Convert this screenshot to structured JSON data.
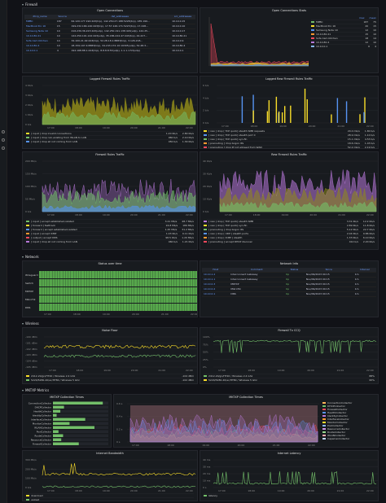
{
  "sections": {
    "firewall": "Firewall",
    "network": "Network",
    "wireless": "Wireless",
    "mktxp": "MKTXP Metrics"
  },
  "panels": {
    "open_connections": "Open Connections",
    "open_connections_stats": "Open Connections Stats",
    "logged_firewall_rules": "Logged Firewall Rules Traffic",
    "logged_raw_firewall_rules": "Logged Raw Firewall Rules Traffic",
    "firewall_rules_traffic": "Firewall Rules Traffic",
    "raw_firewall_rules_traffic": "Raw Firewall Rules Traffic",
    "status_over_time": "Status over time",
    "network_info": "Network Info",
    "noise_floor": "Noise Floor",
    "firewall_tx_ccq": "Firewall Tx CCQ",
    "mktxp_collection_times": "MKTXP Collection Times",
    "mktxp_collection_times_2": "MKTXP Collection Times",
    "internet_bandwidth": "Internet Bandwidth",
    "internet_latency": "Internet Latency"
  },
  "open_connections": {
    "headers": [
      "dhcp_name",
      "Source",
      "dst_addresses",
      "src_addresses"
    ],
    "rows": [
      [
        "MPBC",
        "187",
        "64.120.177.190:443(tcp), 142.250.27.188:5228(tcp), 185.199...",
        "10.10.0.15"
      ],
      [
        "MacBook Pro 16",
        "15",
        "199.232.166.140:443(tcp), 17.57.146.171:5223(tcp), 17.248...",
        "10.10.0.10"
      ],
      [
        "Samsung Note 10",
        "10",
        "216.239.36.223:443(udp), 142.250.191.138:443(udp), 142.25...",
        "10.10.0.17"
      ],
      [
        "10.10.80.21",
        "10",
        "142.250.191.142:443(udp), 35.186.224.47:443(tcp), 44.227...",
        "10.10.80.21"
      ],
      [
        "Sofa Cam Kitchen",
        "14",
        "34.100.21.92:443(tcp), 52.28.18.1:8883(tcp), 3.126.218...",
        "10.10.0.9"
      ],
      [
        "10.10.80.4",
        "10",
        "18.159.197.4:8883(tcp), 34.243.172.10:19305(udp), 52.48.3...",
        "10.10.80.4"
      ],
      [
        "10.10.0.1",
        "4",
        "192.168.88.1:443(tcp), 8.8.8.8:53(udp), 1.1.1.1:53(udp)",
        "10.10.0.1"
      ]
    ]
  },
  "open_connections_stats": {
    "legend_headers": [
      "max",
      "mean"
    ],
    "legend": [
      {
        "name": "MPBC",
        "max": "187",
        "mean": "75"
      },
      {
        "name": "MacBook Pro 16",
        "max": "20",
        "mean": "15"
      },
      {
        "name": "Samsung Note 10",
        "max": "12",
        "mean": "10"
      },
      {
        "name": "10.10.80.21",
        "max": "15",
        "mean": "10"
      },
      {
        "name": "Sofa Cam Kitchen",
        "max": "18",
        "mean": "14"
      },
      {
        "name": "10.10.80.4",
        "max": "12",
        "mean": "10"
      },
      {
        "name": "10.10.0.1",
        "max": "6",
        "mean": "4"
      }
    ]
  },
  "logged_fw": {
    "yticks": [
      "4 Kb/s",
      "3 Kb/s",
      "2 Kb/s",
      "1 Kb/s",
      "0 b/s"
    ],
    "xticks": [
      "17:00",
      "18:00",
      "19:00",
      "20:00",
      "21:00",
      "22:00"
    ],
    "legend_headers": [
      "Mean",
      "Max"
    ],
    "legend": [
      {
        "name": "[ input ] drop invalid connections",
        "mean": "1.20 Kb/s",
        "max": "2.80 Kb/s"
      },
      {
        "name": "[ input ] drop non-existing from WLAN to LAN",
        "mean": "960 b/s",
        "max": "2.10 Kb/s"
      },
      {
        "name": "[ input ] drop all not coming from LAN",
        "mean": "450 b/s",
        "max": "1.30 Kb/s"
      }
    ]
  },
  "logged_raw": {
    "yticks": [
      "6 b/s",
      "4 b/s",
      "2 b/s",
      "0 b/s"
    ],
    "xticks": [
      "17:00",
      "18:00",
      "19:00",
      "20:00",
      "21:00",
      "22:00"
    ],
    "legend_headers": [
      "Mean",
      "Max"
    ],
    "legend": [
      {
        "name": "[ raw ] drop [ TCP quick] stealth SMB requests",
        "mean": "20.0 mb/s",
        "max": "1.80 b/s"
      },
      {
        "name": "[ raw ] drop [ TCP quick] stealth port 0",
        "mean": "28.9 mb/s",
        "max": "1.10 b/s"
      },
      {
        "name": "[ raw ] drop [ TCP quick] syn-fin",
        "mean": "15.1 mb/s",
        "max": "4.53 b/s"
      },
      {
        "name": "[ prerouting ] drop bogon IPs",
        "mean": "18.6 mb/s",
        "max": "1.43 b/s"
      },
      {
        "name": "[ prerouting ] drop IP not allowed from WAN",
        "mean": "52.2 mb/s",
        "max": "2.19 b/s"
      }
    ]
  },
  "fw_traffic": {
    "yticks": [
      "200 Mb/s",
      "150 Mb/s",
      "100 Mb/s",
      "50 Mb/s",
      "0 b/s"
    ],
    "xticks": [
      "17:00",
      "18:00",
      "19:00",
      "20:00",
      "21:00",
      "22:00"
    ],
    "legend": [
      {
        "name": "[ input ] accept established,related",
        "mean": "3.21 Mb/s",
        "max": "48.7 Mb/s"
      },
      {
        "name": "[ forward ] fasttrack",
        "mean": "16.8 Mb/s",
        "max": "189 Mb/s"
      },
      {
        "name": "[ forward ] accept established,related",
        "mean": "1.45 Mb/s",
        "max": "31.2 Mb/s"
      },
      {
        "name": "[ input ] accept ICMP",
        "mean": "1.03 Kb/s",
        "max": "9.11 Kb/s"
      },
      {
        "name": "[ output ] accept DNS",
        "mean": "98.5 Kb/s",
        "max": "1.20 Mb/s"
      },
      {
        "name": "[ input ] drop all not coming from LAN",
        "mean": "460 b/s",
        "max": "1.21 Kb/s"
      }
    ]
  },
  "raw_traffic": {
    "yticks": [
      "40 Kb/s",
      "30 Kb/s",
      "20 Kb/s",
      "10 Kb/s",
      "0 b/s"
    ],
    "xticks": [
      "17:00",
      "18:00",
      "19:00",
      "20:00",
      "21:00",
      "22:00"
    ],
    "legend": [
      {
        "name": "[ raw ] drop [ TCP quick] stealth SMB",
        "mean": "3.31 Kb/s",
        "max": "12.2 Kb/s"
      },
      {
        "name": "[ raw ] drop [ TCP quick] syn-fin",
        "mean": "2.89 Kb/s",
        "max": "11.8 Kb/s"
      },
      {
        "name": "[ prerouting ] drop bogon IPs",
        "mean": "5.12 Kb/s",
        "max": "22.7 Kb/s"
      },
      {
        "name": "[ raw ] drop [ UDP ] stealth ports",
        "mean": "2.04 Kb/s",
        "max": "9.86 Kb/s"
      },
      {
        "name": "[ raw ] drop [ ICMP ] stealth",
        "mean": "1.33 Kb/s",
        "max": "6.10 Kb/s"
      },
      {
        "name": "[ prerouting ] accept DHCP discover",
        "mean": "412 b/s",
        "max": "2.20 Kb/s"
      }
    ]
  },
  "status_over_time": {
    "rows": [
      "Wireguard",
      "Switch",
      "MKTXP",
      "MikroTik",
      "DNS"
    ],
    "xticks": [
      "17:00",
      "18:00",
      "19:00",
      "20:00",
      "21:00",
      "22:00"
    ]
  },
  "network_info": {
    "headers": [
      "Host",
      "Comment",
      "Status",
      "Since",
      "Interval"
    ],
    "rows": [
      [
        "10.10.1.2",
        "Interconnect Gateway",
        "Up",
        "Nov/09/2023 09:15",
        "1m"
      ],
      [
        "10.10.1.1",
        "Interconnect Gateway",
        "Up",
        "Nov/09/2023 09:15",
        "1m"
      ],
      [
        "10.10.0.3",
        "MKTXP",
        "Up",
        "Nov/09/2023 09:15",
        "1m"
      ],
      [
        "10.10.0.2",
        "MikroTik",
        "Up",
        "Nov/09/2023 09:15",
        "1m"
      ],
      [
        "10.10.0.1",
        "DNS",
        "Up",
        "Nov/09/2023 09:15",
        "1m"
      ]
    ]
  },
  "noise_floor": {
    "yticks": [
      "-100 dBm",
      "-101 dBm",
      "-102 dBm",
      "-103 dBm",
      "-104 dBm",
      "-105 dBm"
    ],
    "xticks": [
      "17:00",
      "18:00",
      "19:00",
      "20:00",
      "21:00",
      "22:00"
    ],
    "legend": [
      {
        "name": "2412-20/gn/HT20 / Wireless 2.4 Ghz",
        "current": "-104 dBm"
      },
      {
        "name": "5220/5280-20/ac/HT80 / Wireless 5 Ghz",
        "current": "-102 dBm"
      }
    ]
  },
  "tx_ccq": {
    "yticks": [
      "100%",
      "75%",
      "50%",
      "25%",
      "0%"
    ],
    "xticks": [
      "17:00",
      "18:00",
      "19:00",
      "20:00",
      "21:00",
      "22:00"
    ],
    "legend": [
      {
        "name": "2412-20/gn/HT20 / Wireless 2.4 Ghz",
        "current": "88%"
      },
      {
        "name": "5220/5280-20/ac/HT80 / Wireless 5 Ghz",
        "current": "95%"
      }
    ]
  },
  "mktxp_bars": [
    {
      "name": "ConnectionCollector",
      "value": 0.54
    },
    {
      "name": "DHCPCollector",
      "value": 0.12
    },
    {
      "name": "HealthCollector",
      "value": 0.08
    },
    {
      "name": "IdentityCollector",
      "value": 0.04
    },
    {
      "name": "InterfaceCollector",
      "value": 0.35
    },
    {
      "name": "MonitorCollector",
      "value": 0.18
    },
    {
      "name": "WLANCollector",
      "value": 0.45
    },
    {
      "name": "PoolCollector",
      "value": 0.06
    },
    {
      "name": "RouteCollector",
      "value": 0.11
    },
    {
      "name": "ResourceCollector",
      "value": 0.09
    },
    {
      "name": "FirewallCollector",
      "value": 0.28
    }
  ],
  "mktxp_lines": {
    "xticks": [
      "17:00",
      "18:00",
      "19:00",
      "20:00",
      "21:00",
      "22:00"
    ],
    "legend": [
      "ConnectionCollector",
      "DHCPCollector",
      "FirewallCollector",
      "HealthCollector",
      "IdentityCollector",
      "InterfaceCollector",
      "MonitorCollector",
      "PoolCollector",
      "ResourceCollector",
      "RouteCollector",
      "WLANCollector",
      "CapsmanCollector"
    ],
    "colors": [
      "#ffb357",
      "#73bf69",
      "#f2495c",
      "#5794f2",
      "#b877d9",
      "#ff9830",
      "#fade2a",
      "#8ab8ff",
      "#ca95e5",
      "#96d98d",
      "#ffa6b0",
      "#c0d8ff"
    ]
  },
  "internet_bandwidth": {
    "yticks": [
      "300 Mb/s",
      "200 Mb/s",
      "100 Mb/s",
      "0 b/s"
    ],
    "xticks": [
      "17:00",
      "18:00",
      "19:00",
      "20:00",
      "21:00",
      "22:00"
    ],
    "legend": [
      "download",
      "upload"
    ]
  },
  "internet_latency": {
    "yticks": [
      "40 ms",
      "30 ms",
      "20 ms",
      "10 ms",
      "0 s"
    ],
    "xticks": [
      "17:00",
      "18:00",
      "19:00",
      "20:00",
      "21:00",
      "22:00"
    ],
    "legend": [
      "latency"
    ]
  },
  "colors": {
    "green": "#73bf69",
    "yellow": "#fade2a",
    "olive": "#8f8a1a",
    "red": "#f2495c",
    "blue": "#5794f2",
    "purple": "#b877d9"
  }
}
